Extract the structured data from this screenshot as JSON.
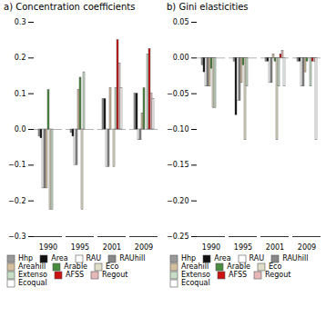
{
  "chart_data": [
    {
      "type": "bar",
      "title": "a) Concentration coefficients",
      "categories": [
        "1990",
        "1995",
        "2001",
        "2009"
      ],
      "series": [
        {
          "name": "Hhp",
          "color": "#999999",
          "values": [
            -0.02,
            -0.01,
            0.085,
            0.1
          ]
        },
        {
          "name": "Area",
          "color": "#111111",
          "values": [
            -0.025,
            -0.02,
            0.085,
            0.1
          ]
        },
        {
          "name": "RAU",
          "color": "#ffffff",
          "values": [
            -0.165,
            -0.1,
            -0.105,
            -0.03
          ]
        },
        {
          "name": "RAUhill",
          "color": "#888888",
          "values": [
            -0.165,
            -0.1,
            -0.105,
            -0.03
          ]
        },
        {
          "name": "Areahill",
          "color": "#d4bfa0",
          "values": [
            -0.165,
            0.11,
            0.115,
            0.045
          ]
        },
        {
          "name": "Arable",
          "color": "#4a8c3f",
          "values": [
            0.11,
            0.145,
            null,
            0.115
          ]
        },
        {
          "name": "Eco",
          "color": "#e0ddc8",
          "values": [
            -0.225,
            -0.225,
            -0.105,
            null
          ]
        },
        {
          "name": "Extenso",
          "color": "#c8ddc8",
          "values": [
            -0.225,
            0.16,
            0.115,
            0.21
          ]
        },
        {
          "name": "AFSS",
          "color": "#cc1111",
          "values": [
            null,
            null,
            0.25,
            0.225
          ]
        },
        {
          "name": "Regout",
          "color": "#e8b8b8",
          "values": [
            null,
            null,
            0.185,
            0.1
          ]
        },
        {
          "name": "Ecoqual",
          "color": "#ffffff",
          "values": [
            null,
            null,
            0.115,
            0.085
          ]
        }
      ],
      "ylim": [
        -0.3,
        0.3
      ],
      "yticks": [
        -0.3,
        -0.2,
        -0.1,
        {
          "value": 0,
          "label": "0.0"
        },
        0.1,
        0.2,
        0.3
      ],
      "grid": false,
      "legend": "bottom"
    },
    {
      "type": "bar",
      "title": "b) Gini elasticities",
      "categories": [
        "1990",
        "1995",
        "2001",
        "2009"
      ],
      "series": [
        {
          "name": "Hhp",
          "color": "#999999",
          "values": [
            -0.01,
            -0.005,
            -0.005,
            -0.005
          ]
        },
        {
          "name": "Area",
          "color": "#111111",
          "values": [
            -0.02,
            -0.08,
            -0.005,
            -0.005
          ]
        },
        {
          "name": "RAU",
          "color": "#ffffff",
          "values": [
            -0.04,
            -0.06,
            -0.035,
            -0.04
          ]
        },
        {
          "name": "RAUhill",
          "color": "#888888",
          "values": [
            -0.04,
            -0.06,
            -0.035,
            -0.04
          ]
        },
        {
          "name": "Areahill",
          "color": "#d4bfa0",
          "values": [
            -0.04,
            -0.035,
            0.005,
            -0.02
          ]
        },
        {
          "name": "Arable",
          "color": "#4a8c3f",
          "values": [
            -0.015,
            -0.01,
            -0.005,
            -0.005
          ]
        },
        {
          "name": "Eco",
          "color": "#e0ddc8",
          "values": [
            -0.07,
            -0.115,
            -0.115,
            null
          ]
        },
        {
          "name": "Extenso",
          "color": "#c8ddc8",
          "values": [
            -0.07,
            -0.04,
            -0.04,
            -0.04
          ]
        },
        {
          "name": "AFSS",
          "color": "#cc1111",
          "values": [
            null,
            null,
            0.005,
            -0.005
          ]
        },
        {
          "name": "Regout",
          "color": "#e8b8b8",
          "values": [
            null,
            null,
            0.01,
            -0.005
          ]
        },
        {
          "name": "Ecoqual",
          "color": "#ffffff",
          "values": [
            null,
            null,
            -0.04,
            -0.115
          ]
        }
      ],
      "ylim": [
        -0.25,
        0.05
      ],
      "yticks": [
        -0.25,
        {
          "value": -0.2,
          "label": "−0.20"
        },
        -0.15,
        {
          "value": -0.1,
          "label": "−0.10"
        },
        -0.05,
        {
          "value": 0,
          "label": "0.00"
        },
        0.05
      ],
      "grid": false,
      "legend": "bottom"
    }
  ]
}
